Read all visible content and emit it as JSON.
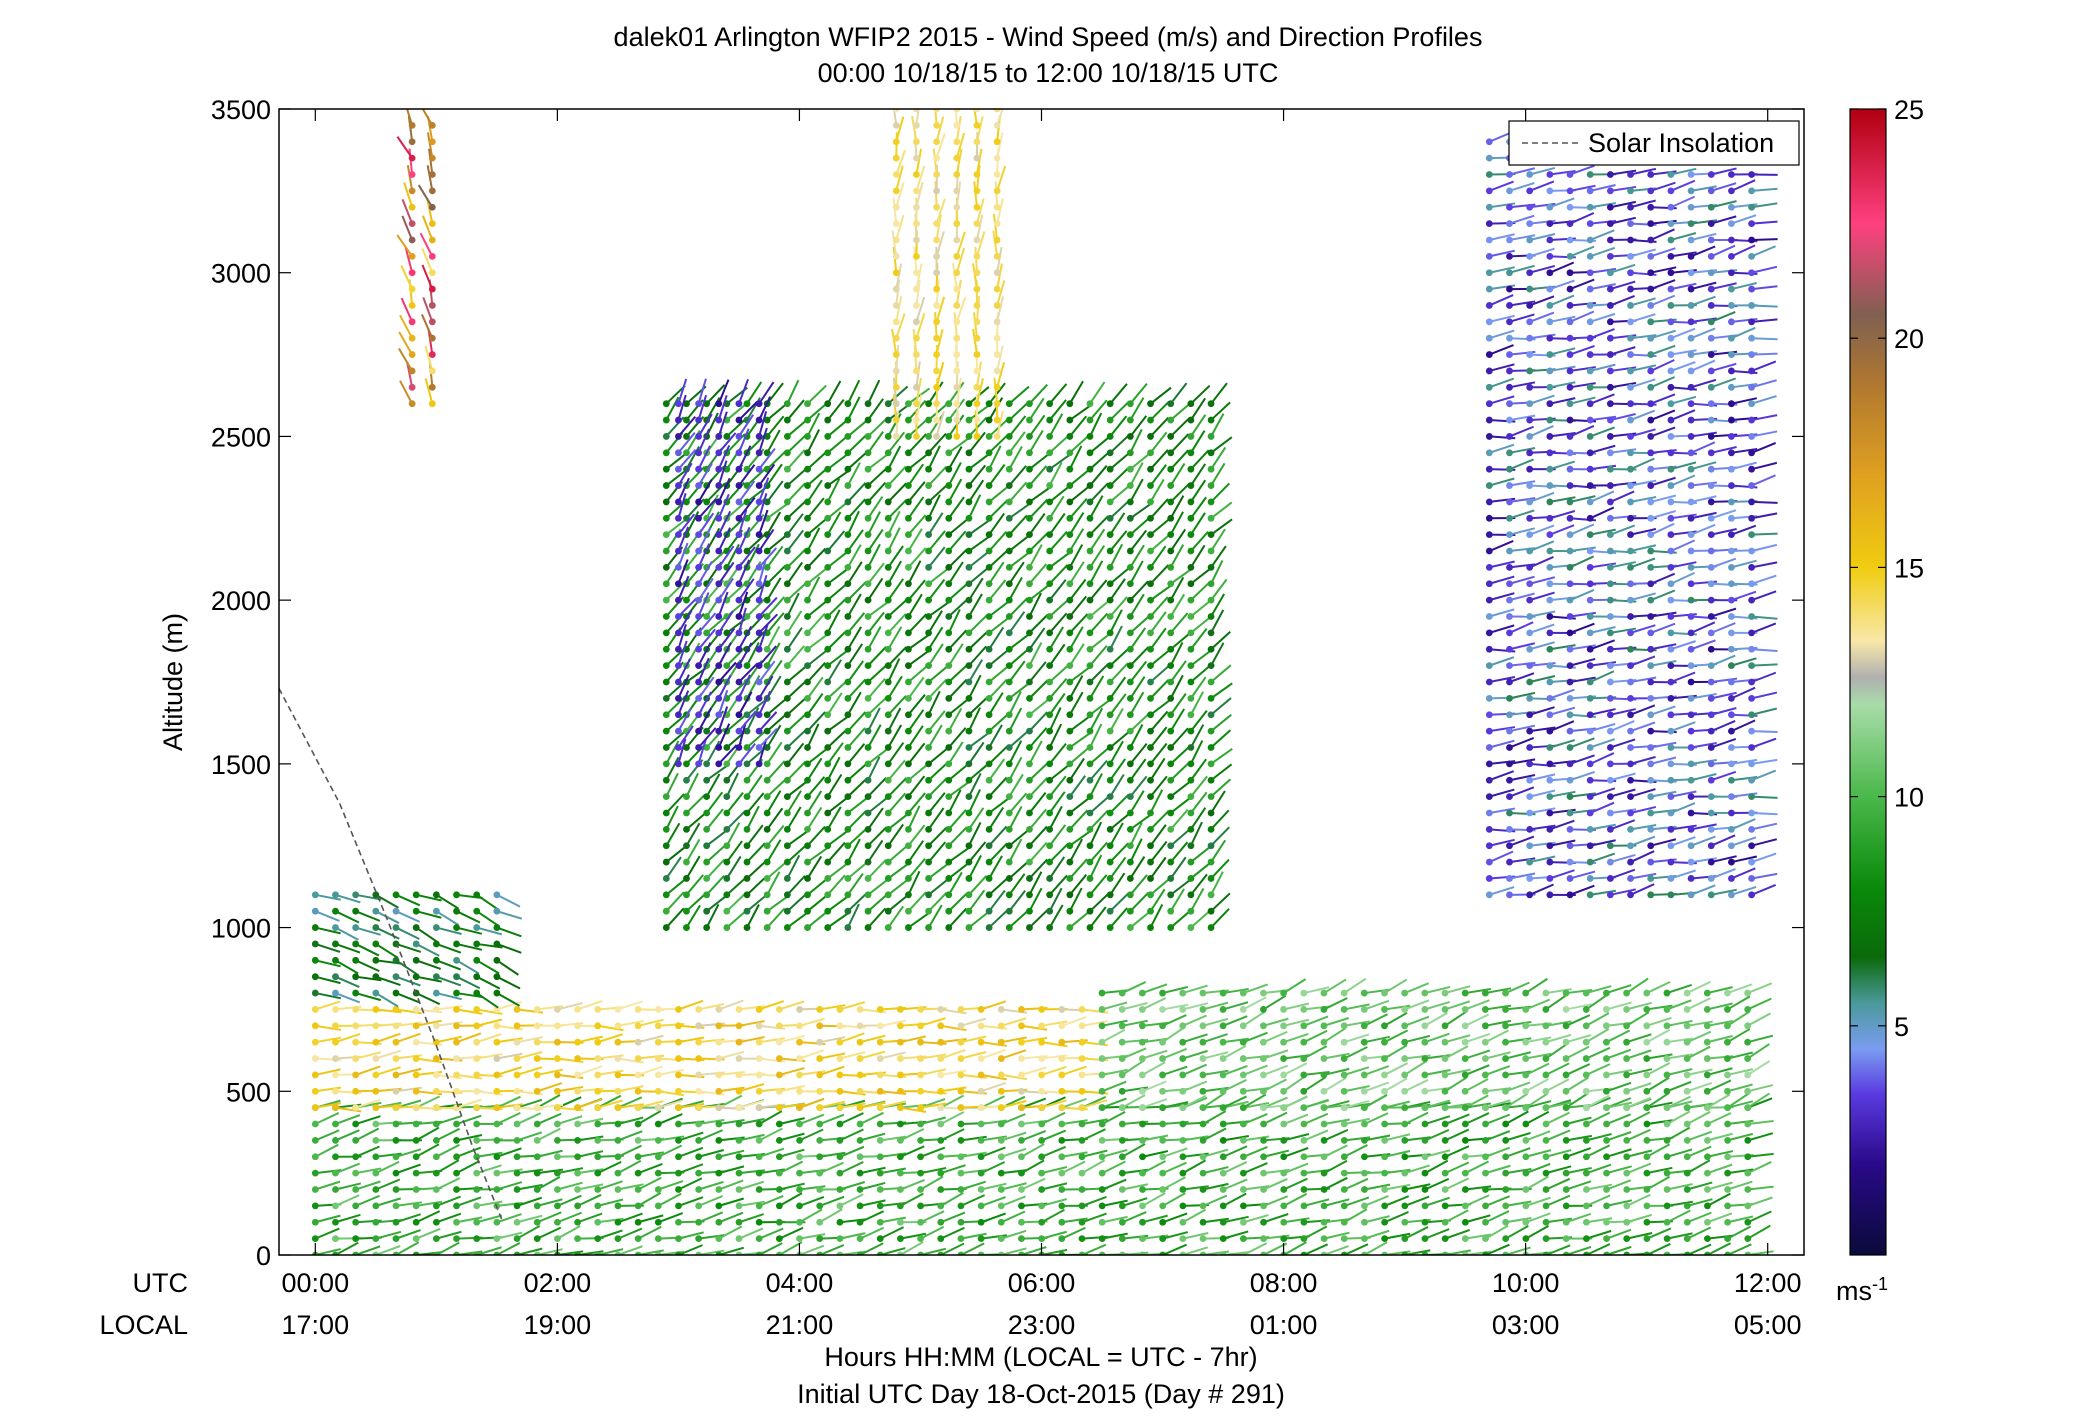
{
  "chart_data": {
    "type": "wind_barb_profile",
    "title": "dalek01 Arlington WFIP2 2015 - Wind Speed (m/s) and Direction Profiles",
    "subtitle": "00:00 10/18/15 to 12:00 10/18/15  UTC",
    "ylabel": "Altitude (m)",
    "xlabel": "Hours HH:MM  (LOCAL = UTC - 7hr)",
    "xlabel2": "Initial UTC Day 18-Oct-2015 (Day # 291)",
    "xaxis_row_labels": [
      "UTC",
      "LOCAL"
    ],
    "x_ticks_utc": [
      "00:00",
      "02:00",
      "04:00",
      "06:00",
      "08:00",
      "10:00",
      "12:00"
    ],
    "x_ticks_local": [
      "17:00",
      "19:00",
      "21:00",
      "23:00",
      "01:00",
      "03:00",
      "05:00"
    ],
    "x_tick_hours": [
      0,
      2,
      4,
      6,
      8,
      10,
      12
    ],
    "xlim_hours": [
      -0.3,
      12.3
    ],
    "y_ticks": [
      0,
      500,
      1000,
      1500,
      2000,
      2500,
      3000,
      3500
    ],
    "ylim": [
      0,
      3500
    ],
    "legend": [
      {
        "label": "Solar Insolation",
        "style": "dashed",
        "color": "#555555"
      }
    ],
    "legend_position": "top-right",
    "colorbar": {
      "ticks": [
        5,
        10,
        15,
        20,
        25
      ],
      "range": [
        0,
        25
      ],
      "unit_label": "ms",
      "unit_exponent": "-1",
      "stops": [
        [
          0,
          "#0a0a3a"
        ],
        [
          2,
          "#2a0a8a"
        ],
        [
          3.5,
          "#5a3ae0"
        ],
        [
          4.5,
          "#7a9cf0"
        ],
        [
          5.5,
          "#4a9a9a"
        ],
        [
          6.5,
          "#0a6a0a"
        ],
        [
          8,
          "#0a8a0a"
        ],
        [
          10,
          "#4ab84a"
        ],
        [
          12,
          "#a8dca8"
        ],
        [
          12.6,
          "#b0b0b0"
        ],
        [
          13.4,
          "#f8e8a8"
        ],
        [
          15,
          "#f0cc10"
        ],
        [
          17,
          "#e0a020"
        ],
        [
          19,
          "#b07830"
        ],
        [
          20.5,
          "#806050"
        ],
        [
          22.5,
          "#ff4080"
        ],
        [
          25,
          "#b00010"
        ]
      ]
    },
    "solar_insolation_curve": [
      {
        "hour": -0.3,
        "altitude": 1730
      },
      {
        "hour": 0.2,
        "altitude": 1380
      },
      {
        "hour": 0.6,
        "altitude": 1020
      },
      {
        "hour": 1.0,
        "altitude": 640
      },
      {
        "hour": 1.3,
        "altitude": 330
      },
      {
        "hour": 1.55,
        "altitude": 100
      }
    ],
    "profile_times_hours_step": 0.1667,
    "wind_profiles_summary": [
      {
        "layer": "surface 0-450 m",
        "hours": [
          0,
          12
        ],
        "speed_ms": [
          8,
          11
        ],
        "direction_deg": 255
      },
      {
        "layer": "low-level jet 450-750 m",
        "hours": [
          0,
          6.5
        ],
        "speed_ms": [
          13,
          16
        ],
        "direction_deg": 265
      },
      {
        "layer": "450-800 m",
        "hours": [
          6.5,
          12
        ],
        "speed_ms": [
          9,
          12
        ],
        "direction_deg": 250
      },
      {
        "layer": "800-1100 m",
        "hours": [
          0,
          1.6
        ],
        "speed_ms": [
          5,
          8
        ],
        "direction_deg": 290
      },
      {
        "layer": "1000-2600 m",
        "hours": [
          2.9,
          7.5
        ],
        "speed_ms": [
          6,
          10
        ],
        "direction_deg": 220
      },
      {
        "layer": "1500-2600 m",
        "hours": [
          3.0,
          3.8
        ],
        "speed_ms": [
          2,
          4
        ],
        "direction_deg": 210
      },
      {
        "layer": "2500-3500 m",
        "hours": [
          4.8,
          5.8
        ],
        "speed_ms": [
          13,
          15
        ],
        "direction_deg": 185
      },
      {
        "layer": "1100-3400 m",
        "hours": [
          9.7,
          12.0
        ],
        "speed_ms": [
          2,
          6
        ],
        "direction_deg": 260
      },
      {
        "layer": "2600-3450 m",
        "hours": [
          0.8,
          1.0
        ],
        "speed_ms": [
          14,
          24
        ],
        "direction_deg": 160
      }
    ]
  }
}
